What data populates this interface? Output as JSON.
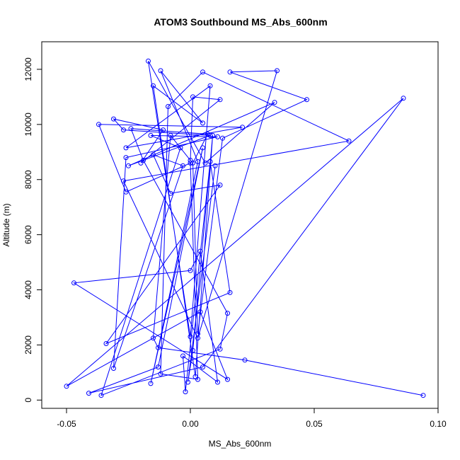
{
  "chart_data": {
    "type": "line",
    "title": "ATOM3 Southbound MS_Abs_600nm",
    "xlabel": "MS_Abs_600nm",
    "ylabel": "Altitude (m)",
    "xlim": [
      -0.06,
      0.1
    ],
    "ylim": [
      -300,
      13000
    ],
    "xticks": [
      -0.05,
      0.0,
      0.05,
      0.1
    ],
    "xtick_labels": [
      "-0.05",
      "0.00",
      "0.05",
      "0.10"
    ],
    "yticks": [
      0,
      2000,
      4000,
      6000,
      8000,
      10000,
      12000
    ],
    "ytick_labels": [
      "0",
      "2000",
      "4000",
      "6000",
      "8000",
      "10000",
      "12000"
    ],
    "grid": false,
    "series": [
      {
        "color": "#0000ff",
        "marker": "open-circle",
        "points": [
          [
            0.094,
            170
          ],
          [
            0.022,
            1450
          ],
          [
            -0.013,
            1900
          ],
          [
            -0.015,
            2250
          ],
          [
            -0.008,
            9600
          ],
          [
            0.0,
            8700
          ],
          [
            0.001,
            11000
          ],
          [
            0.012,
            10900
          ],
          [
            -0.02,
            8600
          ],
          [
            -0.011,
            9800
          ],
          [
            -0.031,
            10200
          ],
          [
            -0.027,
            9800
          ],
          [
            0.008,
            9600
          ],
          [
            -0.025,
            8500
          ],
          [
            0.034,
            10800
          ],
          [
            0.006,
            8600
          ],
          [
            -0.017,
            12300
          ],
          [
            0.0,
            2300
          ],
          [
            0.008,
            11400
          ],
          [
            -0.026,
            9150
          ],
          [
            0.021,
            9900
          ],
          [
            -0.037,
            10000
          ],
          [
            -0.026,
            7550
          ],
          [
            0.0,
            8600
          ],
          [
            0.003,
            750
          ],
          [
            -0.012,
            950
          ],
          [
            -0.009,
            10650
          ],
          [
            0.005,
            11900
          ],
          [
            0.064,
            9400
          ],
          [
            -0.027,
            7950
          ],
          [
            0.003,
            2250
          ],
          [
            0.035,
            11950
          ],
          [
            0.016,
            11900
          ],
          [
            0.047,
            10900
          ],
          [
            0.013,
            9500
          ],
          [
            0.003,
            2400
          ],
          [
            0.001,
            8600
          ],
          [
            0.007,
            9650
          ],
          [
            -0.024,
            9850
          ],
          [
            -0.019,
            8700
          ],
          [
            0.015,
            3150
          ],
          [
            0.012,
            1850
          ],
          [
            -0.036,
            170
          ],
          [
            -0.004,
            9150
          ],
          [
            -0.016,
            9600
          ],
          [
            0.011,
            9550
          ],
          [
            -0.026,
            8800
          ],
          [
            -0.031,
            1150
          ],
          [
            -0.003,
            8500
          ],
          [
            -0.015,
            8900
          ],
          [
            -0.008,
            7500
          ],
          [
            0.012,
            7800
          ],
          [
            -0.034,
            2050
          ],
          [
            0.016,
            3900
          ],
          [
            0.008,
            8650
          ],
          [
            -0.002,
            300
          ],
          [
            -0.003,
            1600
          ],
          [
            0.011,
            650
          ],
          [
            0.004,
            5400
          ],
          [
            0.0,
            4700
          ],
          [
            -0.047,
            4250
          ],
          [
            0.015,
            750
          ],
          [
            0.004,
            3200
          ],
          [
            -0.05,
            500
          ],
          [
            0.086,
            10950
          ],
          [
            0.005,
            1200
          ],
          [
            -0.041,
            250
          ],
          [
            -0.013,
            1200
          ],
          [
            0.005,
            9150
          ],
          [
            -0.016,
            600
          ],
          [
            0.003,
            8650
          ],
          [
            -0.012,
            11950
          ],
          [
            0.005,
            10050
          ],
          [
            -0.015,
            11400
          ],
          [
            0.002,
            850
          ],
          [
            0.009,
            9600
          ],
          [
            0.001,
            1800
          ],
          [
            -0.001,
            650
          ],
          [
            0.01,
            8500
          ]
        ]
      }
    ]
  }
}
